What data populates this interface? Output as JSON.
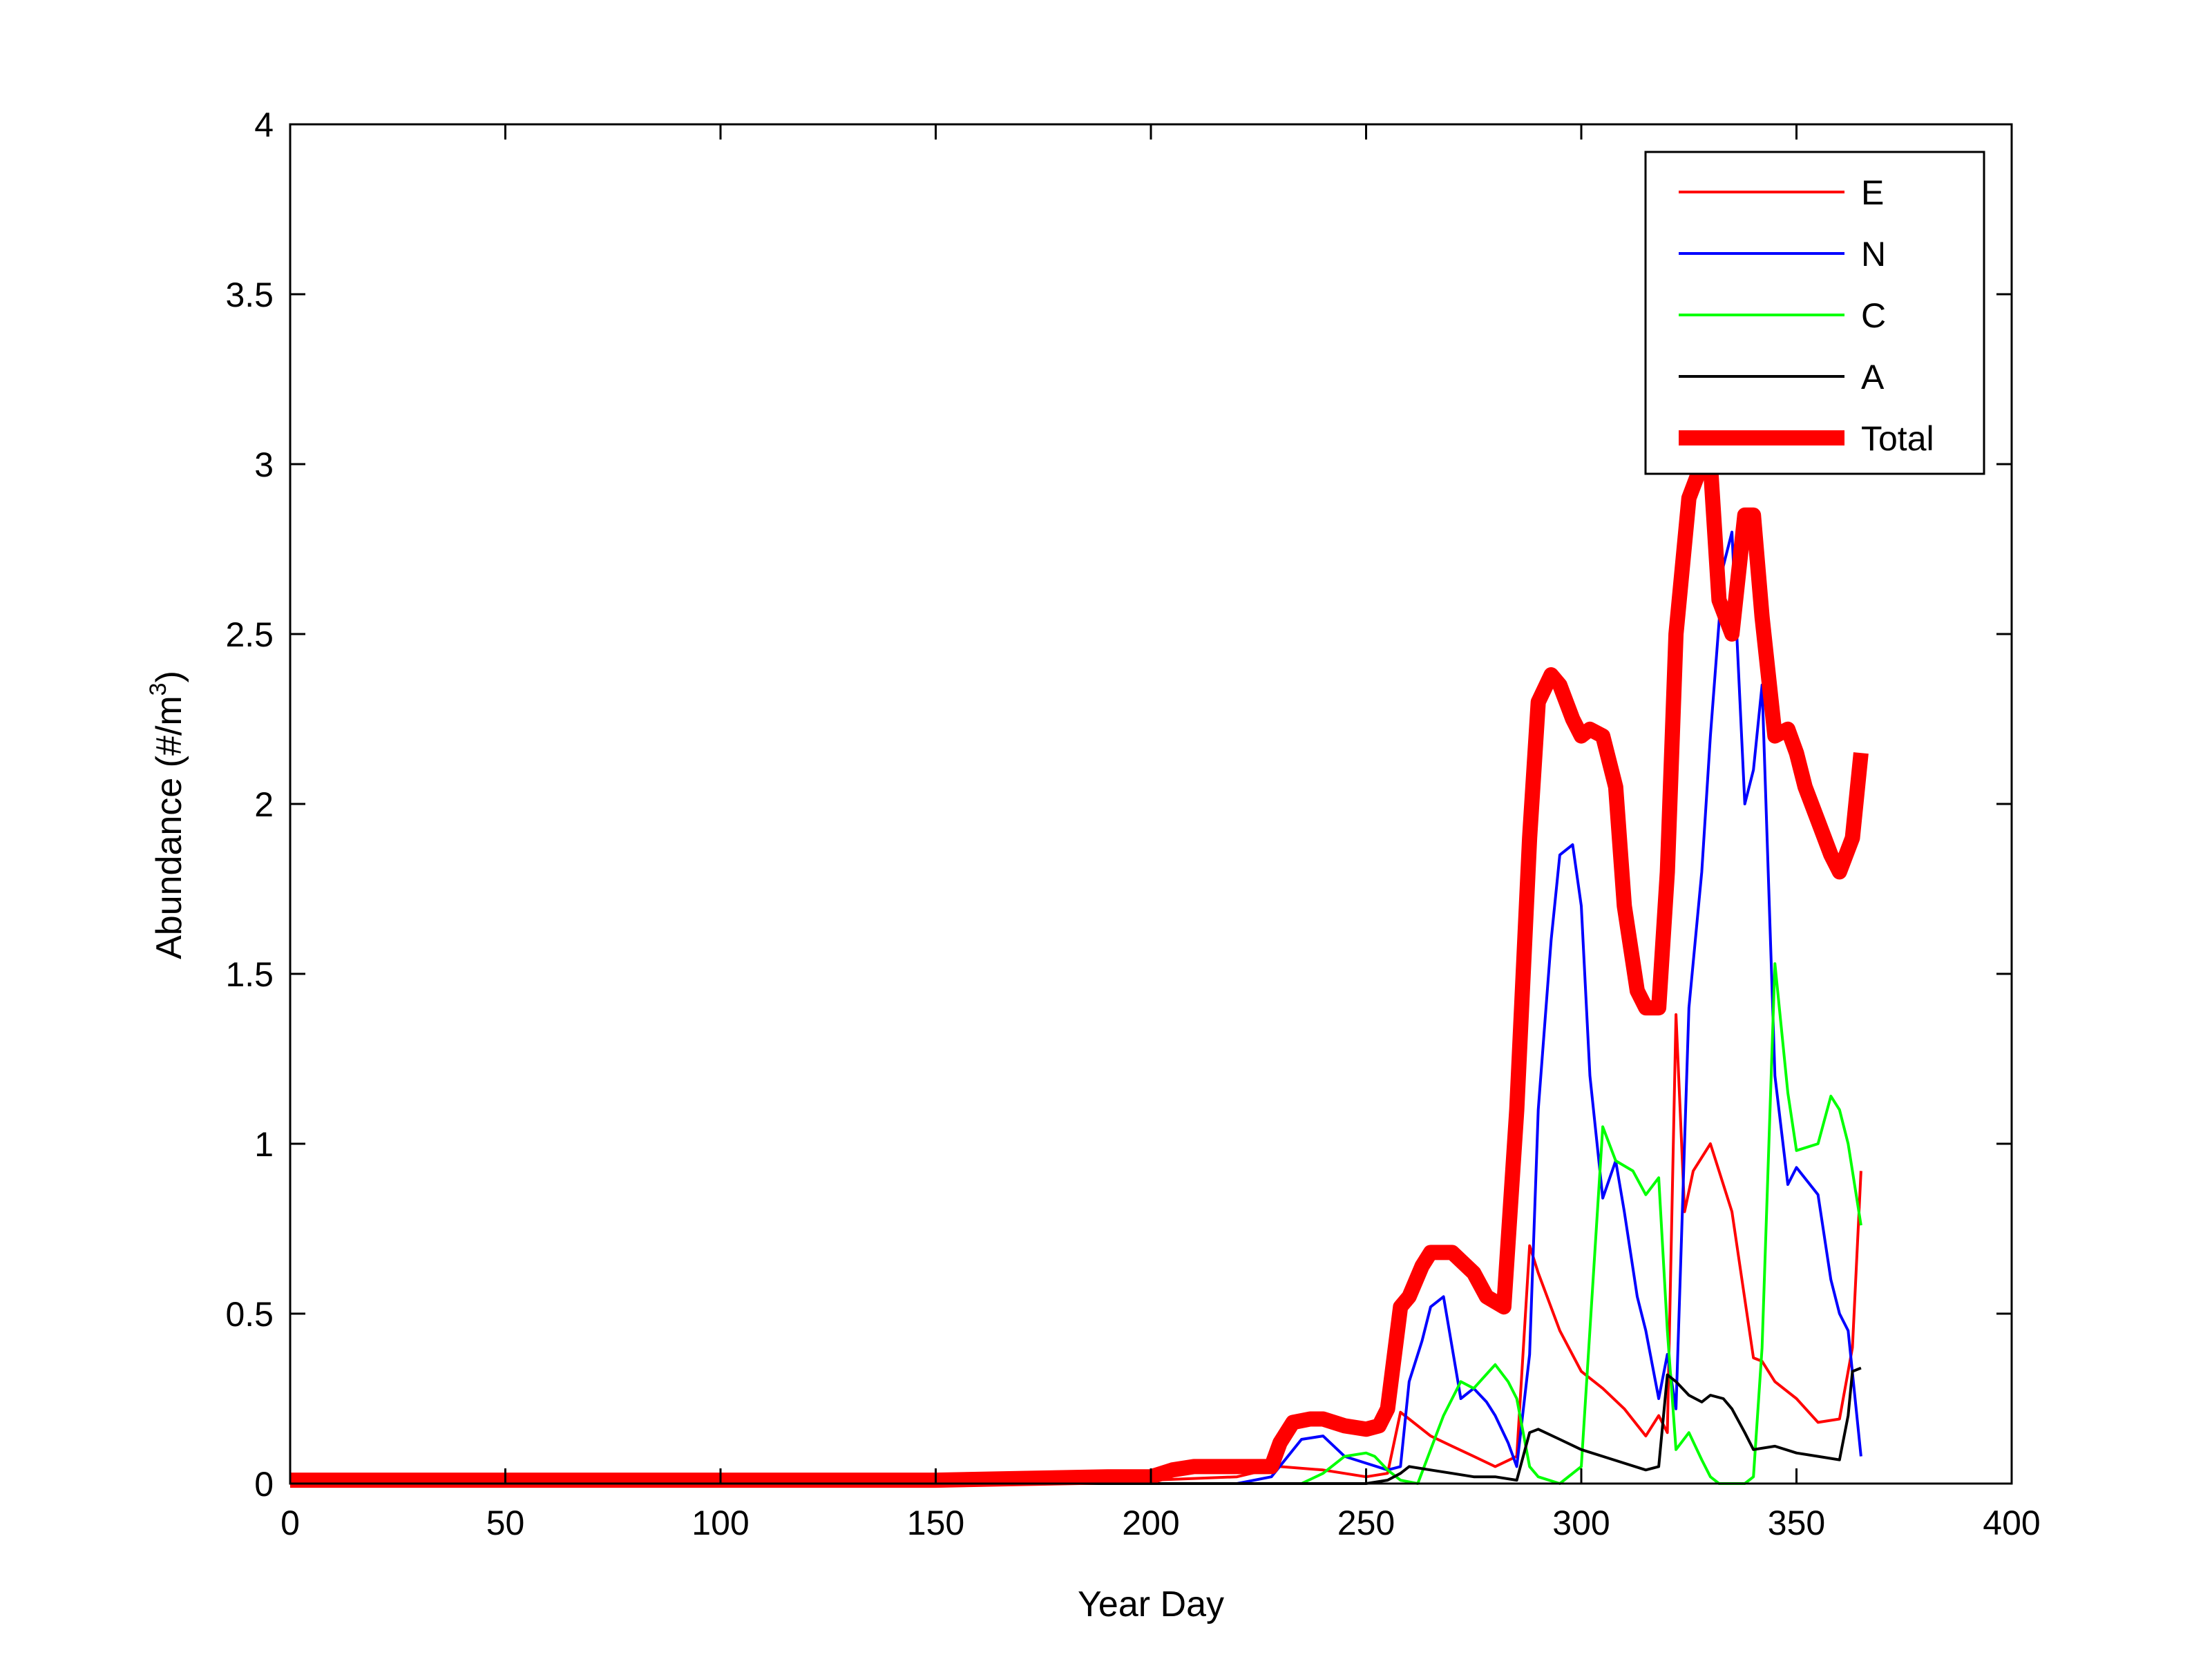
{
  "chart_data": {
    "type": "line",
    "title": "",
    "xlabel": "Year Day",
    "ylabel": "Abundance (#/m",
    "ylabel_superscript": "3",
    "ylabel_suffix": ")",
    "xlim": [
      0,
      400
    ],
    "ylim": [
      0,
      4
    ],
    "xticks": [
      0,
      50,
      100,
      150,
      200,
      250,
      300,
      350,
      400
    ],
    "yticks": [
      0,
      0.5,
      1,
      1.5,
      2,
      2.5,
      3,
      3.5,
      4
    ],
    "xtick_labels": [
      "0",
      "50",
      "100",
      "150",
      "200",
      "250",
      "300",
      "350",
      "400"
    ],
    "ytick_labels": [
      "0",
      "0.5",
      "1",
      "1.5",
      "2",
      "2.5",
      "3",
      "3.5",
      "4"
    ],
    "grid": false,
    "legend_position": "top-right",
    "series": [
      {
        "name": "E",
        "color": "#ff0000",
        "x": [
          0,
          100,
          200,
          220,
          230,
          240,
          250,
          255,
          258,
          260,
          265,
          270,
          275,
          280,
          285,
          288,
          290,
          295,
          300,
          305,
          310,
          315,
          318,
          320,
          322,
          324,
          326,
          330,
          335,
          340,
          342,
          345,
          350,
          355,
          360,
          363,
          365
        ],
        "y": [
          0.005,
          0.005,
          0.01,
          0.02,
          0.05,
          0.04,
          0.02,
          0.03,
          0.21,
          0.19,
          0.14,
          0.11,
          0.08,
          0.05,
          0.08,
          0.7,
          0.62,
          0.45,
          0.33,
          0.28,
          0.22,
          0.14,
          0.2,
          0.15,
          1.38,
          0.8,
          0.92,
          1.0,
          0.8,
          0.37,
          0.36,
          0.3,
          0.25,
          0.18,
          0.19,
          0.4,
          0.92
        ]
      },
      {
        "name": "N",
        "color": "#0000ff",
        "x": [
          0,
          200,
          220,
          228,
          235,
          240,
          245,
          250,
          255,
          258,
          260,
          263,
          265,
          268,
          270,
          272,
          275,
          278,
          280,
          283,
          285,
          288,
          290,
          293,
          295,
          298,
          300,
          302,
          305,
          308,
          310,
          313,
          315,
          318,
          320,
          322,
          325,
          328,
          330,
          333,
          335,
          338,
          340,
          342,
          345,
          348,
          350,
          355,
          358,
          360,
          362,
          365
        ],
        "y": [
          0,
          0,
          0,
          0.02,
          0.13,
          0.14,
          0.08,
          0.06,
          0.04,
          0.05,
          0.3,
          0.42,
          0.52,
          0.55,
          0.4,
          0.25,
          0.28,
          0.24,
          0.2,
          0.12,
          0.05,
          0.38,
          1.1,
          1.6,
          1.85,
          1.88,
          1.7,
          1.2,
          0.84,
          0.95,
          0.8,
          0.55,
          0.45,
          0.25,
          0.38,
          0.22,
          1.4,
          1.8,
          2.2,
          2.7,
          2.8,
          2.0,
          2.1,
          2.35,
          1.2,
          0.88,
          0.93,
          0.85,
          0.6,
          0.5,
          0.45,
          0.08
        ]
      },
      {
        "name": "C",
        "color": "#00ff00",
        "x": [
          0,
          230,
          235,
          240,
          245,
          250,
          252,
          255,
          258,
          262,
          268,
          272,
          275,
          280,
          283,
          285,
          288,
          290,
          295,
          300,
          305,
          308,
          312,
          315,
          318,
          320,
          322,
          325,
          328,
          330,
          332,
          335,
          338,
          340,
          342,
          345,
          348,
          350,
          355,
          358,
          360,
          362,
          365
        ],
        "y": [
          0,
          0,
          0,
          0.03,
          0.08,
          0.09,
          0.08,
          0.04,
          0.01,
          0,
          0.2,
          0.3,
          0.28,
          0.35,
          0.3,
          0.25,
          0.05,
          0.02,
          0,
          0.05,
          1.05,
          0.95,
          0.92,
          0.85,
          0.9,
          0.45,
          0.1,
          0.15,
          0.07,
          0.02,
          0,
          0,
          0,
          0.02,
          0.4,
          1.53,
          1.15,
          0.98,
          1.0,
          1.14,
          1.1,
          1.0,
          0.76
        ]
      },
      {
        "name": "A",
        "color": "#000000",
        "x": [
          0,
          250,
          255,
          258,
          260,
          265,
          270,
          275,
          280,
          285,
          288,
          290,
          295,
          300,
          305,
          310,
          315,
          318,
          320,
          322,
          325,
          328,
          330,
          333,
          335,
          338,
          340,
          345,
          350,
          355,
          360,
          362,
          363,
          365
        ],
        "y": [
          0,
          0,
          0.01,
          0.03,
          0.05,
          0.04,
          0.03,
          0.02,
          0.02,
          0.01,
          0.15,
          0.16,
          0.13,
          0.1,
          0.08,
          0.06,
          0.04,
          0.05,
          0.32,
          0.3,
          0.26,
          0.24,
          0.26,
          0.25,
          0.22,
          0.15,
          0.1,
          0.11,
          0.09,
          0.08,
          0.07,
          0.2,
          0.33,
          0.34
        ]
      },
      {
        "name": "Total",
        "color": "#ff0000",
        "thick": true,
        "x": [
          0,
          100,
          150,
          170,
          190,
          200,
          205,
          210,
          220,
          228,
          230,
          233,
          237,
          240,
          245,
          250,
          253,
          255,
          258,
          260,
          263,
          265,
          268,
          270,
          275,
          278,
          282,
          285,
          288,
          290,
          293,
          295,
          298,
          300,
          302,
          305,
          308,
          310,
          313,
          315,
          318,
          320,
          322,
          325,
          328,
          330,
          332,
          335,
          338,
          340,
          342,
          345,
          348,
          350,
          352,
          355,
          358,
          360,
          363,
          365
        ],
        "y": [
          0.01,
          0.01,
          0.01,
          0.015,
          0.02,
          0.02,
          0.04,
          0.05,
          0.05,
          0.05,
          0.12,
          0.18,
          0.19,
          0.19,
          0.17,
          0.16,
          0.17,
          0.22,
          0.52,
          0.55,
          0.64,
          0.68,
          0.68,
          0.68,
          0.62,
          0.55,
          0.52,
          1.1,
          1.9,
          2.3,
          2.38,
          2.35,
          2.25,
          2.2,
          2.22,
          2.2,
          2.05,
          1.7,
          1.45,
          1.4,
          1.4,
          1.8,
          2.5,
          2.9,
          3.0,
          3.0,
          2.6,
          2.5,
          2.85,
          2.85,
          2.55,
          2.2,
          2.22,
          2.15,
          2.05,
          1.95,
          1.85,
          1.8,
          1.9,
          2.15
        ]
      }
    ]
  }
}
